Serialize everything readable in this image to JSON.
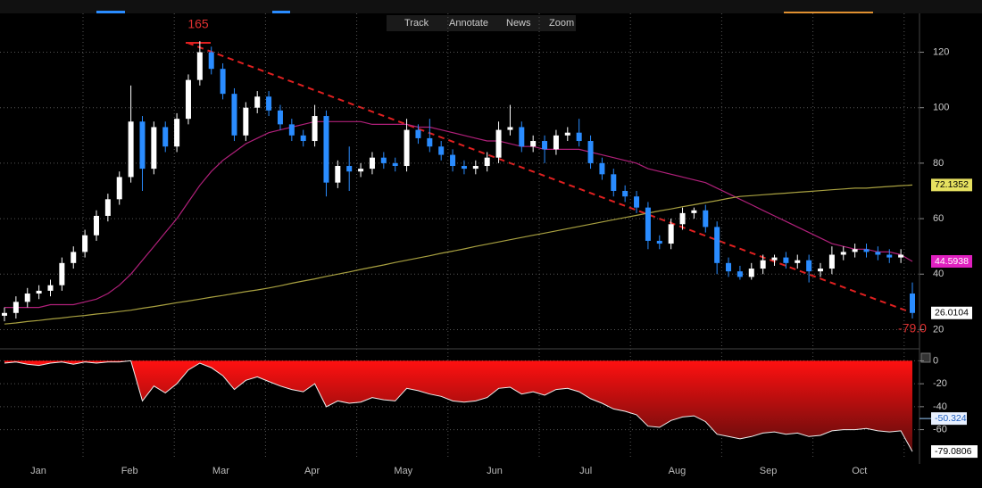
{
  "toolbar": [
    "Track",
    "Annotate",
    "News",
    "Zoom"
  ],
  "chart_data": [
    {
      "type": "candlestick",
      "categories": [
        "Jan",
        "Feb",
        "Mar",
        "Apr",
        "May",
        "Jun",
        "Jul",
        "Aug",
        "Sep",
        "Oct"
      ],
      "up_color": "#ffffff",
      "down_color": "#2a8cff",
      "open": [
        25,
        26,
        30,
        33,
        34,
        36,
        44,
        48,
        54,
        61,
        67,
        75,
        95,
        78,
        93,
        86,
        96,
        110,
        120,
        114,
        105,
        90,
        100,
        104,
        99,
        94,
        90,
        88,
        97,
        73,
        79,
        77,
        78,
        82,
        80,
        79,
        92,
        89,
        86,
        83,
        79,
        78,
        79,
        82,
        92,
        93,
        86,
        88,
        85,
        90,
        91,
        88,
        80,
        76,
        70,
        68,
        64,
        52,
        51,
        58,
        62,
        63,
        57,
        44,
        41,
        39,
        42,
        45,
        46,
        44,
        45,
        41,
        42,
        47,
        48,
        49,
        48,
        47,
        46,
        33
      ],
      "high": [
        28,
        32,
        35,
        36,
        38,
        46,
        50,
        56,
        63,
        69,
        77,
        108,
        97,
        95,
        95,
        98,
        112,
        124,
        122,
        116,
        107,
        102,
        106,
        106,
        101,
        96,
        92,
        101,
        99,
        81,
        86,
        80,
        84,
        84,
        82,
        96,
        94,
        96,
        88,
        85,
        81,
        81,
        84,
        95,
        101,
        95,
        90,
        90,
        92,
        93,
        96,
        90,
        82,
        78,
        72,
        70,
        66,
        54,
        60,
        64,
        64,
        65,
        59,
        46,
        43,
        44,
        47,
        47,
        48,
        47,
        47,
        44,
        50,
        50,
        51,
        51,
        50,
        49,
        49,
        37
      ],
      "low": [
        23,
        24,
        28,
        31,
        32,
        34,
        42,
        46,
        52,
        59,
        65,
        73,
        70,
        76,
        84,
        84,
        94,
        108,
        112,
        103,
        88,
        88,
        98,
        97,
        92,
        88,
        86,
        86,
        68,
        71,
        70,
        75,
        76,
        78,
        77,
        77,
        87,
        84,
        81,
        77,
        76,
        76,
        77,
        80,
        90,
        84,
        84,
        80,
        83,
        88,
        86,
        78,
        74,
        68,
        66,
        62,
        49,
        49,
        49,
        56,
        60,
        55,
        40,
        39,
        38,
        38,
        40,
        43,
        42,
        42,
        37,
        39,
        40,
        45,
        46,
        46,
        45,
        44,
        44,
        24
      ],
      "close": [
        26,
        30,
        33,
        34,
        36,
        44,
        48,
        54,
        61,
        67,
        75,
        95,
        78,
        93,
        86,
        96,
        110,
        120,
        114,
        105,
        90,
        100,
        104,
        99,
        94,
        90,
        88,
        97,
        73,
        79,
        77,
        78,
        82,
        80,
        79,
        92,
        89,
        86,
        83,
        79,
        78,
        79,
        82,
        92,
        93,
        86,
        88,
        85,
        90,
        91,
        88,
        80,
        76,
        70,
        68,
        64,
        52,
        51,
        58,
        62,
        63,
        57,
        44,
        41,
        39,
        42,
        45,
        46,
        44,
        45,
        41,
        42,
        47,
        48,
        49,
        48,
        47,
        46,
        47,
        26.0104
      ],
      "lines": [
        {
          "color": "#b0207a",
          "label_color": "#e020c0",
          "values": [
            28,
            28,
            28,
            28,
            29,
            29,
            29,
            30,
            31,
            33,
            36,
            40,
            45,
            50,
            55,
            60,
            66,
            72,
            77,
            81,
            84,
            87,
            89,
            91,
            92,
            93,
            94,
            95,
            95,
            95,
            95,
            95,
            94,
            94,
            94,
            94,
            93,
            93,
            92,
            91,
            90,
            89,
            88,
            88,
            87,
            86,
            86,
            85,
            85,
            85,
            85,
            84,
            83,
            82,
            81,
            80,
            78,
            77,
            76,
            75,
            74,
            73,
            71,
            69,
            67,
            65,
            63,
            61,
            59,
            57,
            55,
            53,
            51,
            50,
            49,
            49,
            48,
            48,
            47,
            44.5938
          ]
        },
        {
          "color": "#a8a040",
          "label_color": "#e6e060",
          "values": [
            22,
            22.4,
            22.9,
            23.3,
            23.8,
            24.2,
            24.7,
            25.1,
            25.6,
            26,
            26.5,
            27,
            27.7,
            28.3,
            29,
            29.7,
            30.3,
            31,
            31.7,
            32.3,
            33,
            33.7,
            34.3,
            35,
            35.8,
            36.7,
            37.5,
            38.3,
            39.2,
            40,
            40.8,
            41.7,
            42.5,
            43.3,
            44.2,
            45,
            45.8,
            46.6,
            47.5,
            48.3,
            49.1,
            50,
            50.8,
            51.6,
            52.4,
            53.2,
            54,
            54.8,
            55.6,
            56.4,
            57.2,
            58,
            58.8,
            59.6,
            60.4,
            61.2,
            62,
            62.8,
            63.5,
            64.3,
            65,
            65.8,
            66.5,
            67.3,
            68,
            68.3,
            68.6,
            68.9,
            69.2,
            69.5,
            69.8,
            70.1,
            70.4,
            70.7,
            71,
            71,
            71.3,
            71.6,
            71.9,
            72.1352
          ]
        }
      ],
      "annotations": [
        "165",
        "-79.0"
      ],
      "ylim": [
        15,
        134
      ],
      "yticks": [
        20,
        40,
        60,
        80,
        100,
        120
      ],
      "grid": true
    },
    {
      "type": "area",
      "color": "#ff0000",
      "values": [
        -2,
        -1,
        -3,
        -4,
        -2,
        -1,
        -3,
        -1,
        -2,
        -1,
        -1,
        0,
        -35,
        -22,
        -28,
        -20,
        -8,
        -2,
        -6,
        -13,
        -25,
        -17,
        -14,
        -18,
        -22,
        -25,
        -27,
        -20,
        -40,
        -35,
        -37,
        -36,
        -32,
        -34,
        -35,
        -24,
        -26,
        -29,
        -31,
        -35,
        -36,
        -35,
        -32,
        -24,
        -23,
        -29,
        -27,
        -30,
        -25,
        -24,
        -27,
        -33,
        -37,
        -42,
        -44,
        -47,
        -57,
        -58,
        -52,
        -49,
        -48,
        -53,
        -64,
        -66,
        -68,
        -66,
        -63,
        -62,
        -64,
        -63,
        -66,
        -65,
        -61,
        -60,
        -60,
        -59,
        -61,
        -62,
        -61,
        -79.0806
      ],
      "reference": -50.324,
      "ylim": [
        -86,
        5
      ],
      "yticks": [
        0,
        -20,
        -40,
        -60
      ],
      "grid": true
    }
  ]
}
